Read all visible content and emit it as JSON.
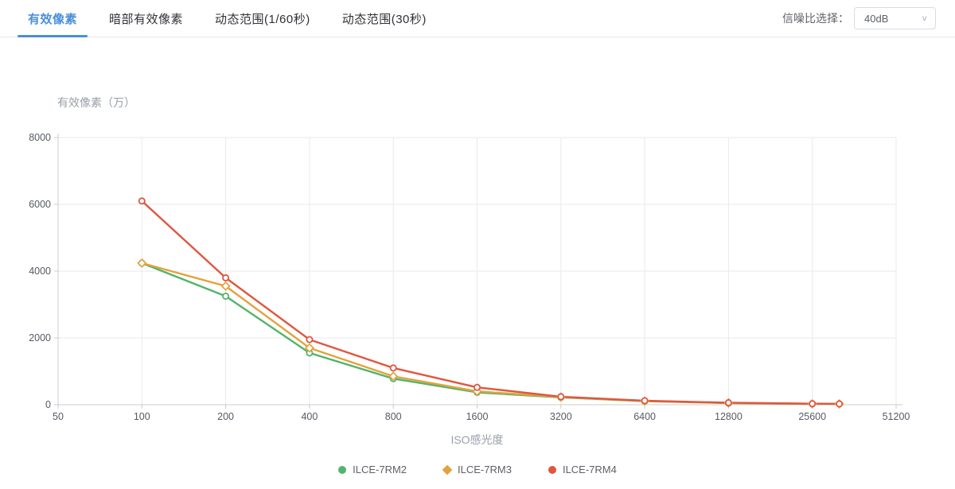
{
  "header": {
    "tabs": [
      {
        "label": "有效像素",
        "active": true
      },
      {
        "label": "暗部有效像素",
        "active": false
      },
      {
        "label": "动态范围(1/60秒)",
        "active": false
      },
      {
        "label": "动态范围(30秒)",
        "active": false
      }
    ],
    "snr": {
      "label": "信噪比选择：",
      "value": "40dB"
    }
  },
  "colors": {
    "accent": "#4a8fd9",
    "grid": "#e9eaef",
    "axis": "#cccccc",
    "tick_text": "#555a63",
    "axis_title_text": "#9aa0a8",
    "green": "#54b36c",
    "yellow": "#e3a23b",
    "red": "#e0563e"
  },
  "chart_data": {
    "type": "line",
    "xlabel": "ISO感光度",
    "ylabel": "有效像素（万）",
    "x_scale": "log2",
    "xlim": [
      50,
      51200
    ],
    "ylim": [
      0,
      8000
    ],
    "x_ticks": [
      50,
      100,
      200,
      400,
      800,
      1600,
      3200,
      6400,
      12800,
      25600,
      51200
    ],
    "y_ticks": [
      0,
      2000,
      4000,
      6000,
      8000
    ],
    "grid": true,
    "legend_position": "bottom",
    "series": [
      {
        "name": "ILCE-7RM2",
        "color": "#54b36c",
        "symbol": "circle",
        "x": [
          100,
          200,
          400,
          800,
          1600,
          3200,
          6400,
          12800,
          25600
        ],
        "values": [
          4240,
          3250,
          1550,
          780,
          370,
          220,
          105,
          50,
          25
        ]
      },
      {
        "name": "ILCE-7RM3",
        "color": "#e3a23b",
        "symbol": "diamond",
        "x": [
          100,
          200,
          400,
          800,
          1600,
          3200,
          6400,
          12800,
          25600,
          32000
        ],
        "values": [
          4240,
          3550,
          1700,
          850,
          400,
          230,
          110,
          55,
          28,
          24
        ]
      },
      {
        "name": "ILCE-7RM4",
        "color": "#e0563e",
        "symbol": "circle",
        "x": [
          100,
          200,
          400,
          800,
          1600,
          3200,
          6400,
          12800,
          25600,
          32000
        ],
        "values": [
          6100,
          3800,
          1950,
          1100,
          520,
          240,
          120,
          60,
          30,
          26
        ]
      }
    ]
  }
}
